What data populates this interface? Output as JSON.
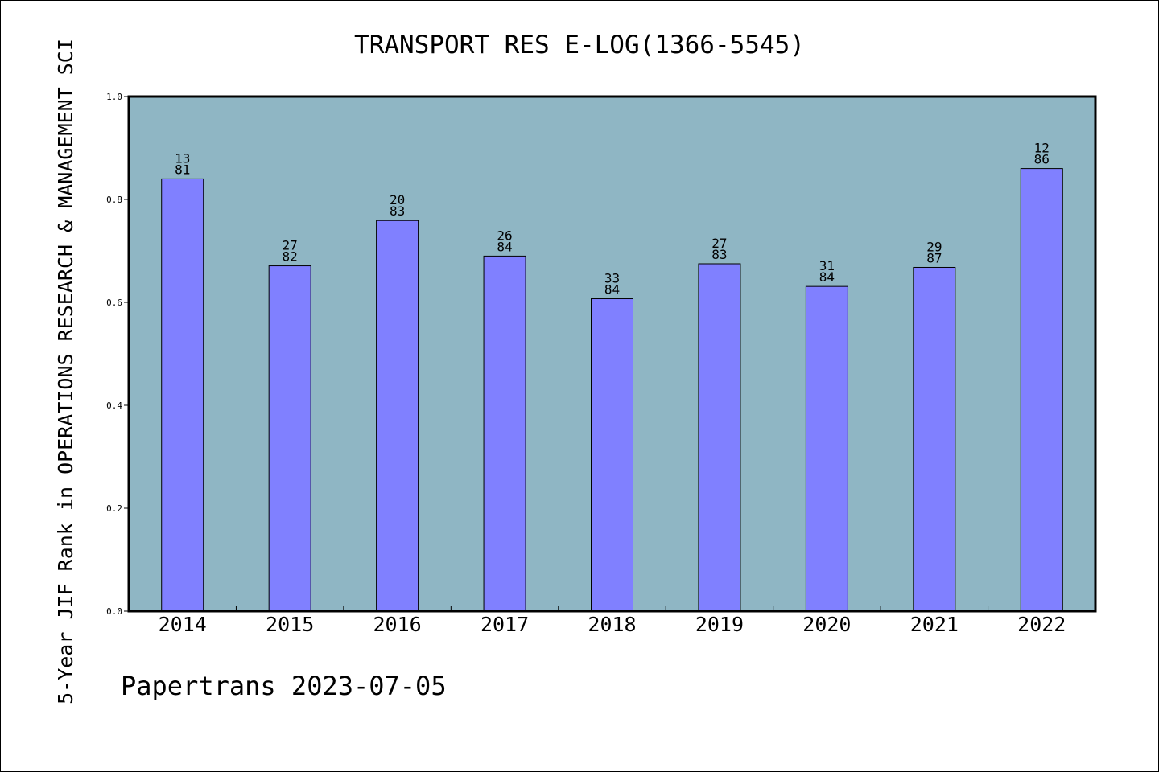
{
  "chart_data": {
    "type": "bar",
    "title": "TRANSPORT RES E-LOG(1366-5545)",
    "xlabel": "",
    "ylabel": "5-Year JIF Rank in OPERATIONS RESEARCH & MANAGEMENT SCI",
    "categories": [
      "2014",
      "2015",
      "2016",
      "2017",
      "2018",
      "2019",
      "2020",
      "2021",
      "2022"
    ],
    "values": [
      0.84,
      0.671,
      0.759,
      0.69,
      0.607,
      0.675,
      0.631,
      0.668,
      0.86
    ],
    "bar_labels": [
      [
        "13",
        "81"
      ],
      [
        "27",
        "82"
      ],
      [
        "20",
        "83"
      ],
      [
        "26",
        "84"
      ],
      [
        "33",
        "84"
      ],
      [
        "27",
        "83"
      ],
      [
        "31",
        "84"
      ],
      [
        "29",
        "87"
      ],
      [
        "12",
        "86"
      ]
    ],
    "ylim": [
      0,
      1.0
    ],
    "yticks": [
      "0.0",
      "0.2",
      "0.4",
      "0.6",
      "0.8",
      "1.0"
    ],
    "grid": false,
    "legend": "none",
    "colors": {
      "plot_background": "#8fb6c4",
      "bar_fill": "#8080ff",
      "bar_stroke": "#000000"
    }
  },
  "footer": {
    "text": "Papertrans 2023-07-05"
  }
}
